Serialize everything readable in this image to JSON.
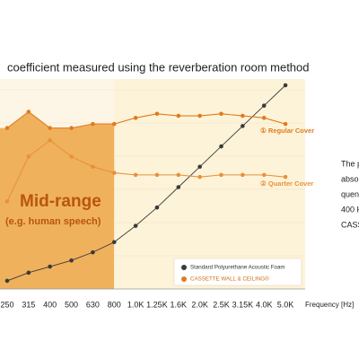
{
  "chart_data": {
    "type": "line",
    "title": "coefficient measured using the reverberation room method",
    "categories": [
      "250",
      "315",
      "400",
      "500",
      "630",
      "800",
      "1.0K",
      "1.25K",
      "1.6K",
      "2.0K",
      "2.5K",
      "3.15K",
      "4.0K",
      "5.0K"
    ],
    "xlabel": "Frequency [Hz]",
    "ylim": [
      0,
      1
    ],
    "band": {
      "label": "Mid-range",
      "sublabel": "(e.g. human speech)"
    },
    "series": [
      {
        "name": "Standard Polyurethane Acoustic Foam",
        "color": "#3a3a3a",
        "values": [
          0.04,
          0.08,
          0.11,
          0.14,
          0.18,
          0.23,
          0.31,
          0.4,
          0.5,
          0.6,
          0.7,
          0.8,
          0.9,
          1.0
        ]
      },
      {
        "name": "① Regular Cover",
        "color": "#e07b1f",
        "values": [
          0.79,
          0.87,
          0.79,
          0.79,
          0.81,
          0.81,
          0.84,
          0.86,
          0.85,
          0.85,
          0.86,
          0.85,
          0.84,
          0.81
        ]
      },
      {
        "name": "② Quarter Cover",
        "color": "#e8913a",
        "values": [
          0.43,
          0.65,
          0.73,
          0.65,
          0.6,
          0.57,
          0.56,
          0.56,
          0.56,
          0.55,
          0.56,
          0.56,
          0.56,
          0.55
        ]
      }
    ],
    "legend": [
      {
        "label": "Standard Polyurethane Acoustic Foam",
        "color": "#3a3a3a"
      },
      {
        "label": "CASSETTE WALL & CEILING®",
        "color": "#e07b1f"
      }
    ],
    "side_text": [
      "The p",
      "abso",
      "quen",
      "400 H",
      "CASS"
    ]
  }
}
